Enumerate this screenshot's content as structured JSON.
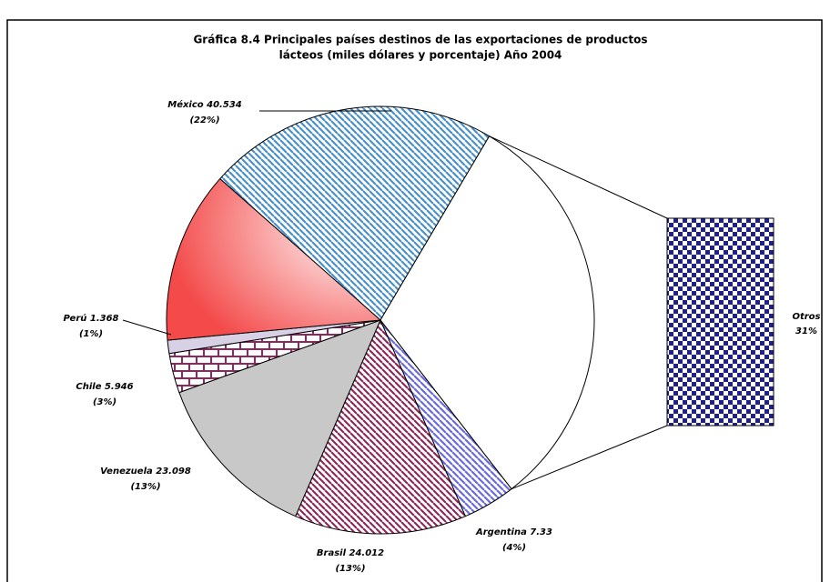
{
  "chart_data": {
    "type": "pie-of-bar",
    "title": [
      "Gráfica 8.4  Principales países destinos de las exportaciones de productos",
      "lácteos (miles dólares y porcentaje) Año 2004"
    ],
    "categories": [
      "México 40.534",
      "Otros",
      "Argentina  7.33",
      "Brasil 24.012",
      "Venezuela 23.098",
      "Chile 5.946",
      "Perú 1.368",
      null
    ],
    "values": [
      22,
      31,
      4,
      13,
      13,
      3,
      1,
      13
    ],
    "value_labels": [
      "(22%)",
      "31%",
      "(4%)",
      "(13%)",
      "(13%)",
      "(3%)",
      "(1%)",
      null
    ],
    "colors": [
      "#4a90c8",
      "#ffffff",
      "#6a6ae0",
      "#8b2a5a",
      "#c8c8c8",
      "#8b2a5a",
      "#d8d0e4",
      "#f44a4a"
    ],
    "patterns": [
      "diagonal",
      "solid",
      "diagonal",
      "diagonal",
      "solid",
      "brick",
      "solid",
      "gradient"
    ],
    "bar_color": "#20208c",
    "bar_pattern": "checker"
  }
}
